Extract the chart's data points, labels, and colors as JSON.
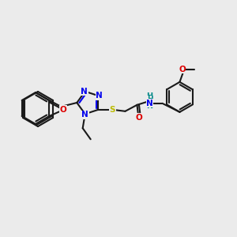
{
  "bg_color": "#ebebeb",
  "bond_color": "#1a1a1a",
  "bond_lw": 1.5,
  "colors": {
    "N": "#0000ee",
    "O": "#dd0000",
    "S": "#bbbb00",
    "H_label": "#008888",
    "C": "#1a1a1a"
  },
  "font_size": 7.5
}
